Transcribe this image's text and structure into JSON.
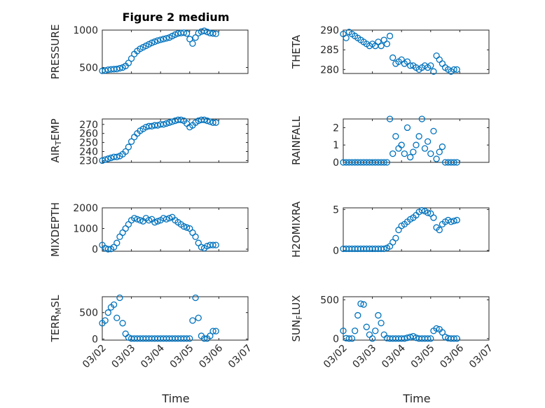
{
  "title": "Figure 2 medium",
  "xlabel": "Time",
  "x_tick_labels": [
    "03/02",
    "03/03",
    "03/04",
    "03/05",
    "03/06",
    "03/07"
  ],
  "marker_color": "#0072bd",
  "chart_data": [
    {
      "type": "scatter",
      "ylabel": "PRESSURE",
      "ylabel_parts": [
        "PRESSURE"
      ],
      "ylim": [
        420,
        1000
      ],
      "yticks": [
        500,
        1000
      ],
      "ytick_labels": [
        "500",
        "1000"
      ],
      "grid": true,
      "x_unit": "days since 03/02",
      "x": [
        0.0,
        0.1,
        0.2,
        0.3,
        0.4,
        0.5,
        0.6,
        0.7,
        0.8,
        0.9,
        1.0,
        1.1,
        1.2,
        1.3,
        1.4,
        1.5,
        1.6,
        1.7,
        1.8,
        1.9,
        2.0,
        2.1,
        2.2,
        2.3,
        2.4,
        2.5,
        2.6,
        2.7,
        2.8,
        2.9,
        3.0,
        3.1,
        3.2,
        3.3,
        3.4,
        3.5,
        3.6,
        3.7,
        3.8,
        3.9
      ],
      "y": [
        455,
        460,
        470,
        475,
        478,
        480,
        490,
        500,
        520,
        560,
        620,
        680,
        720,
        750,
        770,
        790,
        810,
        830,
        845,
        860,
        870,
        880,
        890,
        900,
        920,
        940,
        955,
        960,
        965,
        955,
        880,
        820,
        900,
        960,
        980,
        990,
        975,
        960,
        955,
        950
      ]
    },
    {
      "type": "scatter",
      "ylabel": "THETA",
      "ylabel_parts": [
        "THETA"
      ],
      "ylim": [
        279,
        290
      ],
      "yticks": [
        280,
        285,
        290
      ],
      "ytick_labels": [
        "280",
        "285",
        "290"
      ],
      "grid": true,
      "x_unit": "days since 03/02",
      "x": [
        0.0,
        0.1,
        0.2,
        0.3,
        0.4,
        0.5,
        0.6,
        0.7,
        0.8,
        0.9,
        1.0,
        1.1,
        1.2,
        1.3,
        1.4,
        1.5,
        1.6,
        1.7,
        1.8,
        1.9,
        2.0,
        2.1,
        2.2,
        2.3,
        2.4,
        2.5,
        2.6,
        2.7,
        2.8,
        2.9,
        3.0,
        3.1,
        3.2,
        3.3,
        3.4,
        3.5,
        3.6,
        3.7,
        3.8,
        3.9
      ],
      "y": [
        289,
        288,
        289.5,
        289,
        288.5,
        288,
        287.5,
        287,
        286.5,
        286,
        286.5,
        286,
        287,
        286,
        287.5,
        286.5,
        288.5,
        283,
        281.5,
        282,
        282.5,
        281.5,
        282,
        281,
        281,
        280.5,
        280,
        280.5,
        281,
        280.5,
        281,
        279.5,
        283.5,
        282.5,
        281.5,
        280.5,
        280,
        279.5,
        280,
        280
      ]
    },
    {
      "type": "scatter",
      "ylabel": "AIR_TEMP",
      "ylabel_parts": [
        "AIR",
        "T",
        "EMP"
      ],
      "ylim": [
        228,
        276
      ],
      "yticks": [
        230,
        240,
        250,
        260,
        270
      ],
      "ytick_labels": [
        "230",
        "240",
        "250",
        "260",
        "270"
      ],
      "grid": true,
      "x_unit": "days since 03/02",
      "x": [
        0.0,
        0.1,
        0.2,
        0.3,
        0.4,
        0.5,
        0.6,
        0.7,
        0.8,
        0.9,
        1.0,
        1.1,
        1.2,
        1.3,
        1.4,
        1.5,
        1.6,
        1.7,
        1.8,
        1.9,
        2.0,
        2.1,
        2.2,
        2.3,
        2.4,
        2.5,
        2.6,
        2.7,
        2.8,
        2.9,
        3.0,
        3.1,
        3.2,
        3.3,
        3.4,
        3.5,
        3.6,
        3.7,
        3.8,
        3.9
      ],
      "y": [
        230,
        231,
        232,
        233,
        234,
        234,
        235,
        237,
        240,
        245,
        251,
        256,
        260,
        263,
        265,
        267,
        268,
        268,
        269,
        269,
        270,
        270,
        271,
        272,
        273,
        274,
        275,
        275,
        274,
        271,
        267,
        269,
        272,
        274,
        275,
        275,
        274,
        273,
        272,
        272
      ]
    },
    {
      "type": "scatter",
      "ylabel": "RAINFALL",
      "ylabel_parts": [
        "RAINFALL"
      ],
      "ylim": [
        0,
        2.5
      ],
      "yticks": [
        0,
        1,
        2
      ],
      "ytick_labels": [
        "0",
        "1",
        "2"
      ],
      "grid": true,
      "x_unit": "days since 03/02",
      "x": [
        0.0,
        0.1,
        0.2,
        0.3,
        0.4,
        0.5,
        0.6,
        0.7,
        0.8,
        0.9,
        1.0,
        1.1,
        1.2,
        1.3,
        1.4,
        1.5,
        1.6,
        1.7,
        1.8,
        1.9,
        2.0,
        2.1,
        2.2,
        2.3,
        2.4,
        2.5,
        2.6,
        2.7,
        2.8,
        2.9,
        3.0,
        3.1,
        3.2,
        3.3,
        3.4,
        3.5,
        3.6,
        3.7,
        3.8,
        3.9
      ],
      "y": [
        0,
        0,
        0,
        0,
        0,
        0,
        0,
        0,
        0,
        0,
        0,
        0,
        0,
        0,
        0,
        0,
        2.5,
        0.5,
        1.5,
        0.8,
        1.0,
        0.5,
        2.0,
        0.3,
        0.6,
        1.0,
        1.5,
        2.5,
        0.8,
        1.2,
        0.5,
        1.8,
        0.2,
        0.6,
        0.9,
        0,
        0,
        0,
        0,
        0
      ]
    },
    {
      "type": "scatter",
      "ylabel": "MIXDEPTH",
      "ylabel_parts": [
        "MIXDEPTH"
      ],
      "ylim": [
        -100,
        2000
      ],
      "yticks": [
        0,
        1000,
        2000
      ],
      "ytick_labels": [
        "0",
        "1000",
        "2000"
      ],
      "grid": true,
      "x_unit": "days since 03/02",
      "x": [
        0.0,
        0.1,
        0.2,
        0.3,
        0.4,
        0.5,
        0.6,
        0.7,
        0.8,
        0.9,
        1.0,
        1.1,
        1.2,
        1.3,
        1.4,
        1.5,
        1.6,
        1.7,
        1.8,
        1.9,
        2.0,
        2.1,
        2.2,
        2.3,
        2.4,
        2.5,
        2.6,
        2.7,
        2.8,
        2.9,
        3.0,
        3.1,
        3.2,
        3.3,
        3.4,
        3.5,
        3.6,
        3.7,
        3.8,
        3.9
      ],
      "y": [
        200,
        50,
        0,
        10,
        100,
        300,
        600,
        800,
        1000,
        1200,
        1400,
        1500,
        1450,
        1400,
        1350,
        1500,
        1400,
        1450,
        1300,
        1350,
        1400,
        1500,
        1450,
        1500,
        1550,
        1400,
        1300,
        1200,
        1100,
        1050,
        1000,
        800,
        600,
        300,
        100,
        50,
        150,
        200,
        200,
        200
      ]
    },
    {
      "type": "scatter",
      "ylabel": "H2OMIXRA",
      "ylabel_parts": [
        "H2OMIXRA"
      ],
      "ylim": [
        -0.1,
        5.2
      ],
      "yticks": [
        0,
        5
      ],
      "ytick_labels": [
        "0",
        "5"
      ],
      "grid": true,
      "x_unit": "days since 03/02",
      "x": [
        0.0,
        0.1,
        0.2,
        0.3,
        0.4,
        0.5,
        0.6,
        0.7,
        0.8,
        0.9,
        1.0,
        1.1,
        1.2,
        1.3,
        1.4,
        1.5,
        1.6,
        1.7,
        1.8,
        1.9,
        2.0,
        2.1,
        2.2,
        2.3,
        2.4,
        2.5,
        2.6,
        2.7,
        2.8,
        2.9,
        3.0,
        3.1,
        3.2,
        3.3,
        3.4,
        3.5,
        3.6,
        3.7,
        3.8,
        3.9
      ],
      "y": [
        0.2,
        0.2,
        0.2,
        0.2,
        0.2,
        0.2,
        0.2,
        0.2,
        0.2,
        0.2,
        0.2,
        0.2,
        0.2,
        0.2,
        0.2,
        0.3,
        0.5,
        1.0,
        1.5,
        2.5,
        3.0,
        3.2,
        3.5,
        3.8,
        4.0,
        4.3,
        4.7,
        4.9,
        4.8,
        4.6,
        4.5,
        4.0,
        2.8,
        2.5,
        3.2,
        3.5,
        3.7,
        3.5,
        3.6,
        3.7
      ]
    },
    {
      "type": "scatter",
      "ylabel": "TERR_MSL",
      "ylabel_parts": [
        "TERR",
        "M",
        "SL"
      ],
      "ylim": [
        -20,
        800
      ],
      "yticks": [
        0,
        500
      ],
      "ytick_labels": [
        "0",
        "500"
      ],
      "grid": true,
      "x_unit": "days since 03/02",
      "x": [
        0.0,
        0.1,
        0.2,
        0.3,
        0.4,
        0.5,
        0.6,
        0.7,
        0.8,
        0.9,
        1.0,
        1.1,
        1.2,
        1.3,
        1.4,
        1.5,
        1.6,
        1.7,
        1.8,
        1.9,
        2.0,
        2.1,
        2.2,
        2.3,
        2.4,
        2.5,
        2.6,
        2.7,
        2.8,
        2.9,
        3.0,
        3.1,
        3.2,
        3.3,
        3.4,
        3.5,
        3.6,
        3.7,
        3.8,
        3.9
      ],
      "y": [
        300,
        350,
        500,
        600,
        650,
        400,
        780,
        300,
        100,
        30,
        10,
        10,
        10,
        10,
        10,
        10,
        10,
        10,
        10,
        10,
        10,
        10,
        10,
        10,
        10,
        10,
        10,
        10,
        10,
        10,
        10,
        350,
        780,
        400,
        60,
        10,
        10,
        60,
        150,
        150
      ]
    },
    {
      "type": "scatter",
      "ylabel": "SUN_FLUX",
      "ylabel_parts": [
        "SUN",
        "F",
        "LUX"
      ],
      "ylim": [
        -20,
        540
      ],
      "yticks": [
        0,
        500
      ],
      "ytick_labels": [
        "0",
        "500"
      ],
      "grid": true,
      "x_unit": "days since 03/02",
      "x": [
        0.0,
        0.1,
        0.2,
        0.3,
        0.4,
        0.5,
        0.6,
        0.7,
        0.8,
        0.9,
        1.0,
        1.1,
        1.2,
        1.3,
        1.4,
        1.5,
        1.6,
        1.7,
        1.8,
        1.9,
        2.0,
        2.1,
        2.2,
        2.3,
        2.4,
        2.5,
        2.6,
        2.7,
        2.8,
        2.9,
        3.0,
        3.1,
        3.2,
        3.3,
        3.4,
        3.5,
        3.6,
        3.7,
        3.8,
        3.9
      ],
      "y": [
        100,
        5,
        0,
        0,
        100,
        300,
        450,
        440,
        150,
        50,
        0,
        100,
        300,
        200,
        50,
        5,
        0,
        0,
        0,
        0,
        0,
        0,
        10,
        20,
        30,
        10,
        0,
        0,
        0,
        0,
        0,
        100,
        130,
        120,
        80,
        20,
        5,
        0,
        0,
        0
      ]
    }
  ]
}
